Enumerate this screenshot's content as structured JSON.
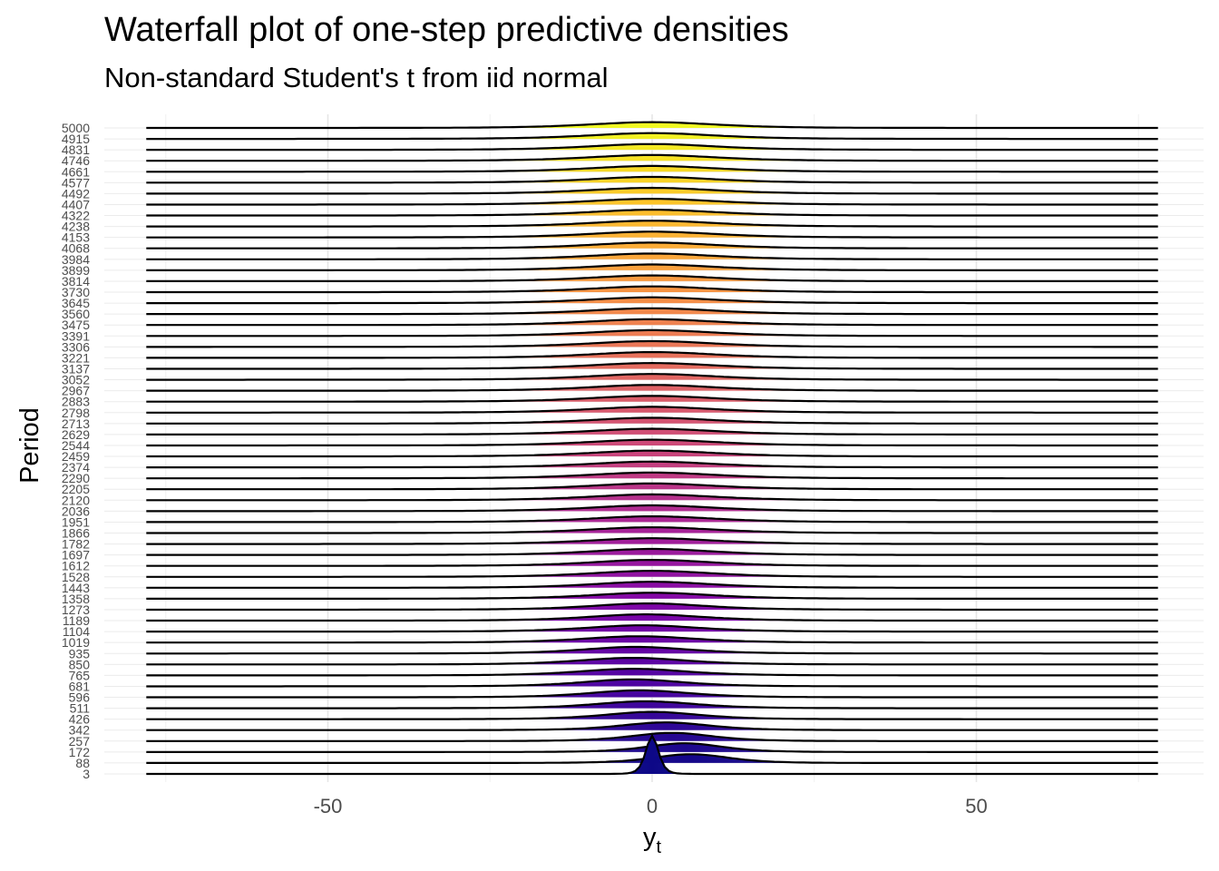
{
  "header": {
    "title": "Waterfall plot of one-step predictive densities",
    "subtitle": "Non-standard Student's t from iid normal"
  },
  "chart_data": {
    "type": "ridgeline",
    "title": "Waterfall plot of one-step predictive densities",
    "subtitle": "Non-standard Student's t from iid normal",
    "xlabel": "y",
    "xlabel_subscript": "t",
    "ylabel": "Period",
    "xlim": [
      -78,
      78
    ],
    "x_ticks": [
      -50,
      0,
      50
    ],
    "x_tick_labels": [
      "-50",
      "0",
      "50"
    ],
    "grid": true,
    "fill_palette": "plasma (purple → orange → yellow)",
    "line_color": "#000000",
    "periods": [
      3,
      88,
      172,
      257,
      342,
      426,
      511,
      596,
      681,
      765,
      850,
      935,
      1019,
      1104,
      1189,
      1273,
      1358,
      1443,
      1528,
      1612,
      1697,
      1782,
      1866,
      1951,
      2036,
      2120,
      2205,
      2290,
      2374,
      2459,
      2544,
      2629,
      2713,
      2798,
      2883,
      2967,
      3052,
      3137,
      3221,
      3306,
      3391,
      3475,
      3560,
      3645,
      3730,
      3814,
      3899,
      3984,
      4068,
      4153,
      4238,
      4322,
      4407,
      4492,
      4577,
      4661,
      4746,
      4831,
      4915,
      5000
    ],
    "centers": [
      0,
      6,
      5,
      3,
      2,
      0,
      -1,
      -2,
      -3,
      -3,
      -3,
      -2.5,
      -2,
      -1.5,
      -1,
      -0.5,
      0,
      0,
      0,
      0,
      0,
      0,
      0,
      0,
      0,
      0,
      0,
      0,
      0,
      0,
      0,
      0,
      0,
      0,
      0,
      0,
      0,
      0,
      0,
      0,
      0,
      0,
      0,
      0,
      0,
      0,
      0,
      0,
      0,
      0,
      0,
      0,
      0,
      0,
      0,
      0,
      0,
      0,
      0,
      0
    ],
    "scales": [
      1,
      6,
      6,
      6.5,
      7,
      7.5,
      8,
      8,
      8,
      8.5,
      8.5,
      8.5,
      9,
      9,
      9,
      9,
      9.5,
      9.5,
      9.5,
      9.5,
      9.5,
      10,
      10,
      10,
      10,
      10,
      10,
      10,
      10,
      10,
      10,
      10,
      10,
      10,
      10,
      10,
      10,
      10,
      10,
      10,
      10,
      10,
      10,
      10,
      10,
      10,
      10,
      10,
      10,
      10,
      10,
      10,
      10,
      10,
      10,
      10,
      10,
      10,
      10,
      10
    ]
  }
}
